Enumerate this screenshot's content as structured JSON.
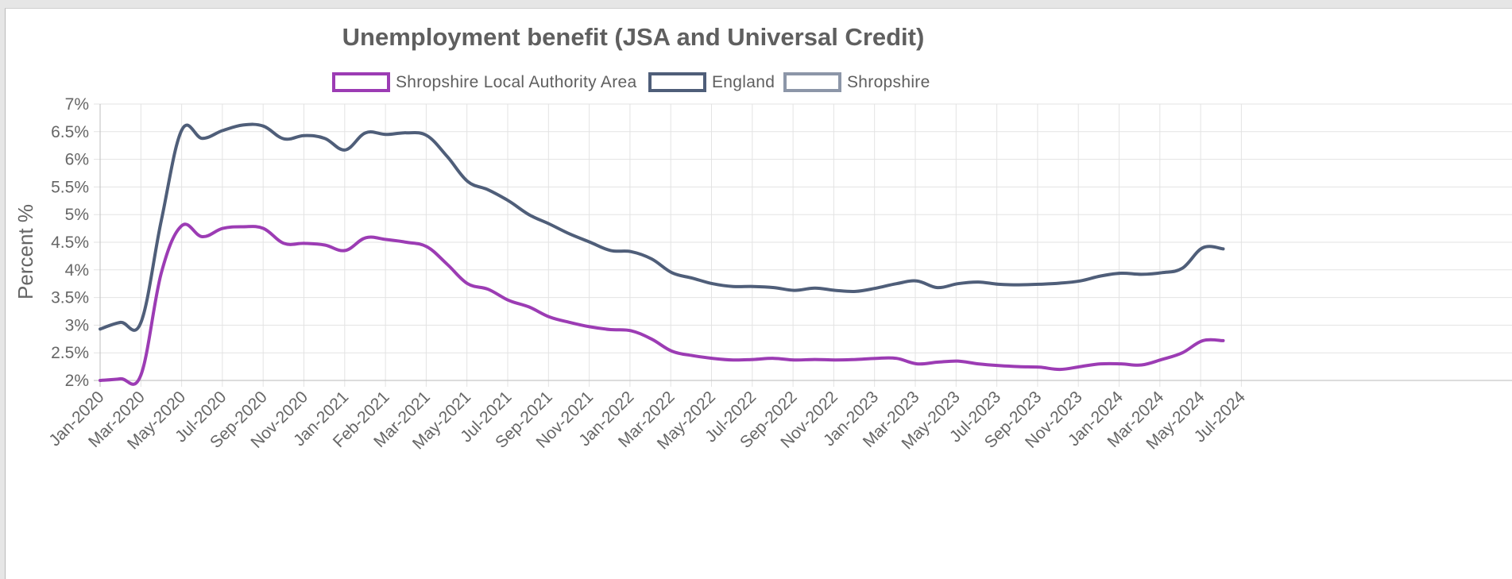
{
  "chart_data": {
    "type": "line",
    "title": "Unemployment benefit (JSA and Universal Credit)",
    "ylabel": "Percent %",
    "xlabel": "",
    "ylim": [
      2,
      7
    ],
    "y_ticks": [
      "2%",
      "2.5%",
      "3%",
      "3.5%",
      "4%",
      "4.5%",
      "5%",
      "5.5%",
      "6%",
      "6.5%",
      "7%"
    ],
    "x_ticks": [
      "Jan-2020",
      "Mar-2020",
      "May-2020",
      "Jul-2020",
      "Sep-2020",
      "Nov-2020",
      "Jan-2021",
      "Feb-2021",
      "Mar-2021",
      "May-2021",
      "Jul-2021",
      "Sep-2021",
      "Nov-2021",
      "Jan-2022",
      "Mar-2022",
      "May-2022",
      "Jul-2022",
      "Sep-2022",
      "Nov-2022",
      "Jan-2023",
      "Mar-2023",
      "May-2023",
      "Jul-2023",
      "Sep-2023",
      "Nov-2023",
      "Jan-2024",
      "Mar-2024",
      "May-2024",
      "Jul-2024"
    ],
    "grid": true,
    "legend_position": "top",
    "series": [
      {
        "name": "Shropshire Local Authority Area",
        "color": "#9c3cb4",
        "values": [
          2.0,
          2.03,
          2.1,
          3.95,
          4.8,
          4.6,
          4.75,
          4.78,
          4.75,
          4.48,
          4.48,
          4.45,
          4.35,
          4.58,
          4.55,
          4.5,
          4.42,
          4.1,
          3.75,
          3.65,
          3.45,
          3.33,
          3.15,
          3.05,
          2.97,
          2.92,
          2.9,
          2.75,
          2.53,
          2.45,
          2.4,
          2.37,
          2.38,
          2.4,
          2.37,
          2.38,
          2.37,
          2.38,
          2.4,
          2.4,
          2.3,
          2.33,
          2.35,
          2.3,
          2.27,
          2.25,
          2.24,
          2.2,
          2.25,
          2.3,
          2.3,
          2.28,
          2.38,
          2.5,
          2.72,
          2.72
        ]
      },
      {
        "name": "England",
        "color": "#4f5e79",
        "values": [
          2.93,
          3.05,
          3.05,
          4.9,
          6.53,
          6.38,
          6.52,
          6.62,
          6.6,
          6.37,
          6.43,
          6.38,
          6.17,
          6.48,
          6.45,
          6.48,
          6.43,
          6.05,
          5.6,
          5.45,
          5.25,
          5.0,
          4.83,
          4.65,
          4.5,
          4.35,
          4.33,
          4.2,
          3.95,
          3.85,
          3.75,
          3.7,
          3.7,
          3.68,
          3.63,
          3.67,
          3.63,
          3.61,
          3.67,
          3.75,
          3.8,
          3.68,
          3.75,
          3.78,
          3.74,
          3.73,
          3.74,
          3.76,
          3.8,
          3.89,
          3.94,
          3.92,
          3.95,
          4.03,
          4.4,
          4.38
        ]
      },
      {
        "name": "Shropshire",
        "color": "#8c96a8",
        "values": []
      }
    ]
  }
}
